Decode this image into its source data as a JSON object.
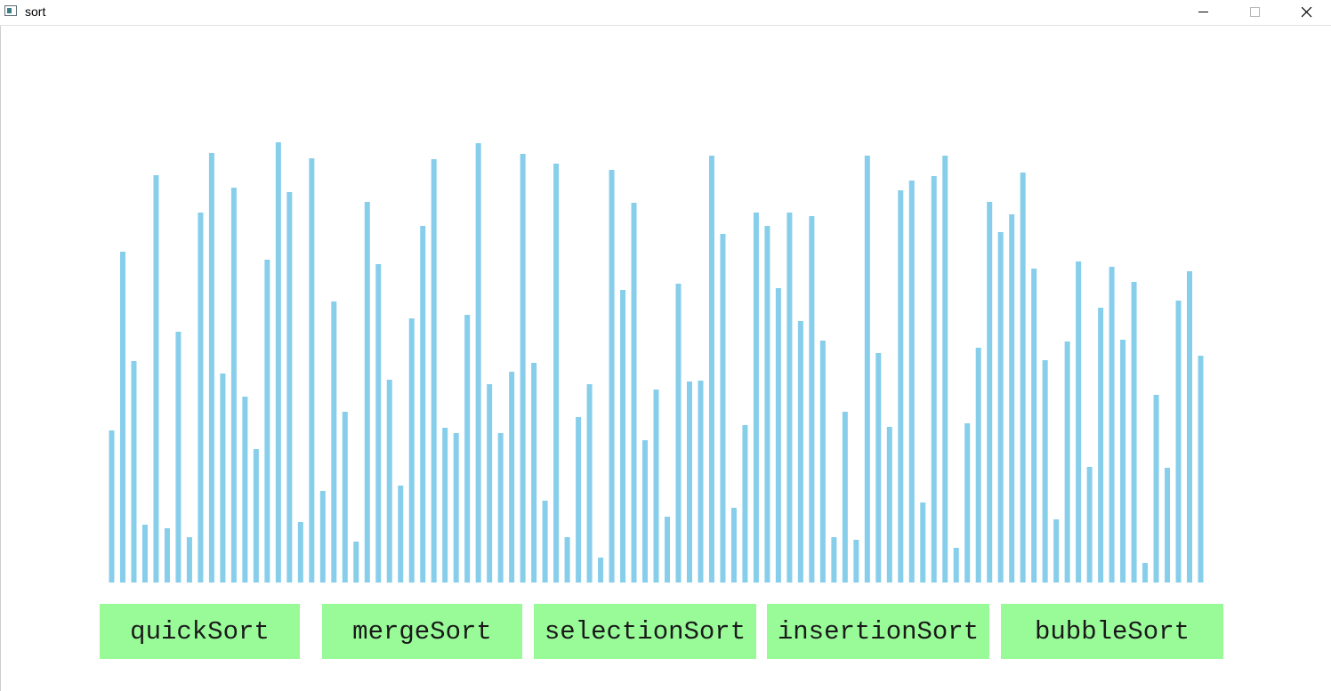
{
  "window": {
    "title": "sort"
  },
  "colors": {
    "bar": "#87ceeb",
    "button": "#98fb98",
    "background": "#ffffff"
  },
  "chart_data": {
    "type": "bar",
    "title": "",
    "xlabel": "",
    "ylabel": "",
    "grid": false,
    "ylim": [
      0,
      500
    ],
    "values": [
      171,
      372,
      249,
      65,
      458,
      61,
      282,
      51,
      416,
      483,
      235,
      444,
      209,
      150,
      363,
      495,
      439,
      68,
      477,
      103,
      316,
      192,
      46,
      428,
      358,
      228,
      109,
      297,
      401,
      476,
      174,
      168,
      301,
      494,
      223,
      168,
      237,
      482,
      247,
      92,
      471,
      51,
      186,
      223,
      28,
      464,
      329,
      427,
      160,
      217,
      74,
      336,
      226,
      227,
      480,
      392,
      84,
      177,
      416,
      401,
      331,
      416,
      294,
      412,
      272,
      51,
      192,
      48,
      480,
      258,
      175,
      441,
      452,
      90,
      457,
      480,
      39,
      179,
      264,
      428,
      394,
      414,
      461,
      353,
      250,
      71,
      271,
      361,
      130,
      309,
      355,
      273,
      338,
      22,
      211,
      129,
      317,
      350,
      255
    ],
    "x_labels": []
  },
  "buttons": [
    {
      "label": "quickSort"
    },
    {
      "label": "mergeSort"
    },
    {
      "label": "selectionSort"
    },
    {
      "label": "insertionSort"
    },
    {
      "label": "bubbleSort"
    }
  ]
}
